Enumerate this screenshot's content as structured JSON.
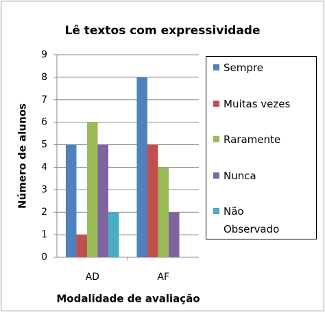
{
  "chart_data": {
    "type": "bar",
    "title": "Lê textos com expressividade",
    "x_label": "Modalidade de avaliação",
    "y_label": "Número de alunos",
    "categories": [
      "AD",
      "AF"
    ],
    "series": [
      {
        "name": "Sempre",
        "color": "#4f81bd",
        "values": [
          5,
          8
        ]
      },
      {
        "name": "Muitas vezes",
        "color": "#c0504d",
        "values": [
          1,
          5
        ]
      },
      {
        "name": "Raramente",
        "color": "#9bbb59",
        "values": [
          6,
          4
        ]
      },
      {
        "name": "Nunca",
        "color": "#8064a2",
        "values": [
          5,
          2
        ]
      },
      {
        "name": "Não Observado",
        "color": "#4bacc6",
        "values": [
          2,
          0
        ]
      }
    ],
    "ylim": [
      0,
      9
    ],
    "yticks": [
      0,
      1,
      2,
      3,
      4,
      5,
      6,
      7,
      8,
      9
    ],
    "grid": true,
    "legend": "right"
  }
}
